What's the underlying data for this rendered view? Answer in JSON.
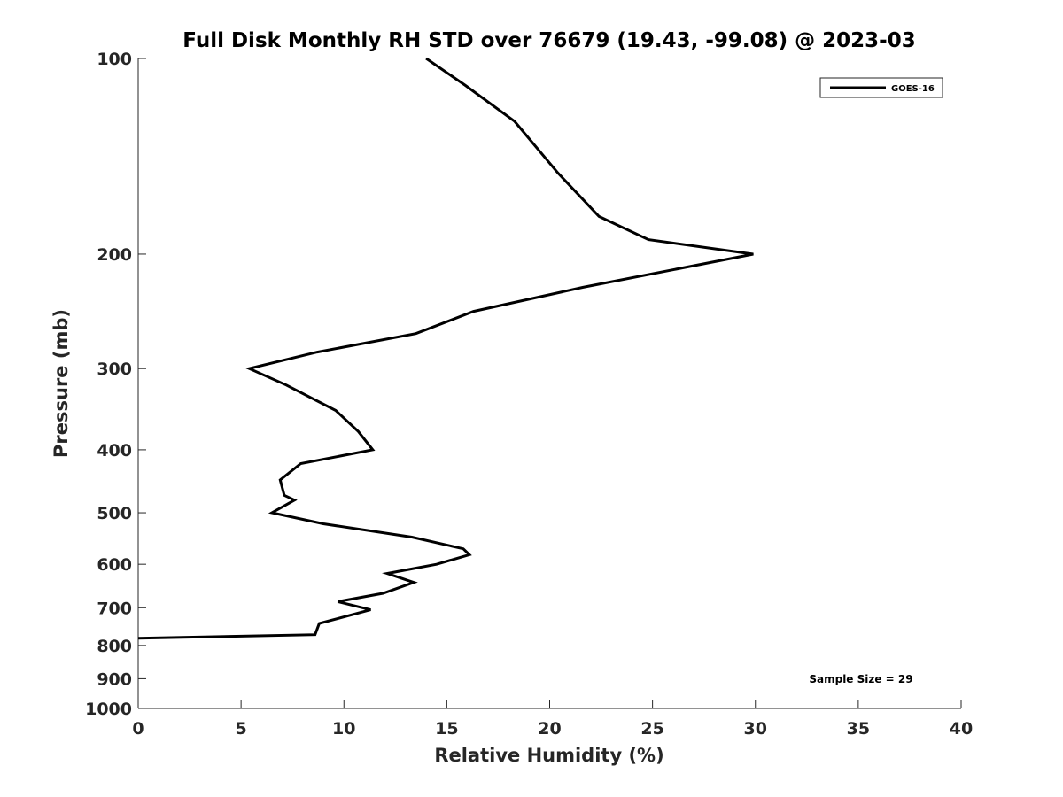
{
  "chart_data": {
    "type": "line",
    "title": "Full Disk Monthly RH STD over 76679 (19.43, -99.08) @ 2023-03",
    "xlabel": "Relative Humidity (%)",
    "ylabel": "Pressure (mb)",
    "xlim": [
      0,
      40
    ],
    "ylim": [
      100,
      1000
    ],
    "yscale": "log",
    "y_reversed": true,
    "grid": false,
    "legend_position": "top-right",
    "x_ticks": [
      "0",
      "5",
      "10",
      "15",
      "20",
      "25",
      "30",
      "35",
      "40"
    ],
    "y_ticks": [
      "100",
      "200",
      "300",
      "400",
      "500",
      "600",
      "700",
      "800",
      "900",
      "1000"
    ],
    "annotation": "Sample Size = 29",
    "series": [
      {
        "name": "GOES-16",
        "color": "#000000",
        "x": [
          14.0,
          15.9,
          18.3,
          20.4,
          22.4,
          24.8,
          29.9,
          21.6,
          16.3,
          13.5,
          8.7,
          5.4,
          7.2,
          9.6,
          10.7,
          11.4,
          7.9,
          6.9,
          7.1,
          7.6,
          6.5,
          9.0,
          13.3,
          15.8,
          16.1,
          14.5,
          12.1,
          13.4,
          11.9,
          9.7,
          11.3,
          8.8,
          8.6,
          0.0
        ],
        "y": [
          100,
          110,
          125,
          150,
          175,
          190,
          200,
          225,
          245,
          265,
          283,
          300,
          318,
          348,
          375,
          400,
          420,
          445,
          470,
          478,
          500,
          520,
          545,
          568,
          580,
          600,
          620,
          640,
          665,
          685,
          705,
          740,
          770,
          780
        ]
      }
    ]
  }
}
